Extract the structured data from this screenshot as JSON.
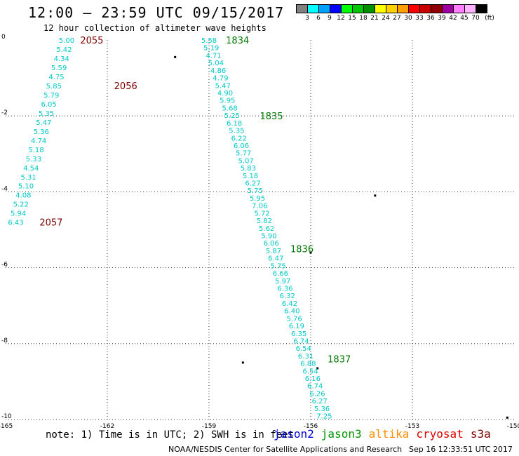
{
  "header": {
    "title": "12:00 – 23:59 UTC 09/15/2017",
    "subtitle": "12 hour collection of altimeter wave heights"
  },
  "legend": {
    "unit": "(ft)",
    "swatches": [
      {
        "color": "#808080",
        "label": "3"
      },
      {
        "color": "#00ffff",
        "label": "6"
      },
      {
        "color": "#00a0ff",
        "label": "9"
      },
      {
        "color": "#0000ff",
        "label": "12"
      },
      {
        "color": "#00ff00",
        "label": "15"
      },
      {
        "color": "#00c800",
        "label": "18"
      },
      {
        "color": "#009000",
        "label": "21"
      },
      {
        "color": "#ffff00",
        "label": "24"
      },
      {
        "color": "#ffd000",
        "label": "27"
      },
      {
        "color": "#ffa000",
        "label": "30"
      },
      {
        "color": "#ff0000",
        "label": "33"
      },
      {
        "color": "#c80000",
        "label": "36"
      },
      {
        "color": "#900000",
        "label": "39"
      },
      {
        "color": "#a000a0",
        "label": "42"
      },
      {
        "color": "#ff80ff",
        "label": "45"
      },
      {
        "color": "#ffb0ff",
        "label": "70"
      },
      {
        "color": "#000000",
        "label": ""
      }
    ]
  },
  "map": {
    "lon_range": [
      -165,
      -150
    ],
    "lat_range": [
      -10,
      0
    ],
    "lon_ticks": [
      "-165",
      "-162",
      "-159",
      "-156",
      "-153",
      "-150"
    ],
    "lat_ticks": [
      "0",
      "-2",
      "-4",
      "-6",
      "-8",
      "-10"
    ],
    "colors": {
      "wave_text": "#00c8c8",
      "pass_a": "#800000",
      "pass_b": "#007800",
      "grid": "#000000"
    },
    "tracks": [
      {
        "name": "track-west",
        "start": [
          -163.2,
          0.0
        ],
        "end": [
          -164.7,
          -4.8
        ],
        "values": [
          "5.00",
          "5.42",
          "4.34",
          "5.59",
          "4.75",
          "5.85",
          "5.79",
          "6.05",
          "5.35",
          "5.47",
          "5.36",
          "4.74",
          "5.18",
          "5.33",
          "4.54",
          "5.31",
          "5.10",
          "4.08",
          "5.22",
          "5.94",
          "6.43"
        ]
      },
      {
        "name": "track-east",
        "start": [
          -159.0,
          0.0
        ],
        "end": [
          -155.6,
          -9.9
        ],
        "values": [
          "5.58",
          "5.19",
          "4.71",
          "5.04",
          "4.86",
          "4.79",
          "5.47",
          "4.90",
          "5.95",
          "5.68",
          "5.25",
          "6.18",
          "5.35",
          "6.22",
          "6.06",
          "5.77",
          "5.07",
          "5.83",
          "5.18",
          "6.27",
          "5.75",
          "5.95",
          "7.06",
          "5.72",
          "5.82",
          "5.62",
          "5.90",
          "6.06",
          "5.87",
          "6.47",
          "5.75",
          "6.66",
          "5.97",
          "6.36",
          "6.32",
          "6.42",
          "6.40",
          "5.76",
          "6.19",
          "6.35",
          "6.74",
          "6.54",
          "6.31",
          "6.88",
          "6.54",
          "6.16",
          "6.74",
          "6.26",
          "6.27",
          "5.36",
          "7.25"
        ]
      }
    ],
    "time_labels": [
      {
        "text": "2055",
        "lon": -162.8,
        "lat": 0.0,
        "pass": "a"
      },
      {
        "text": "2056",
        "lon": -161.8,
        "lat": -1.2,
        "pass": "a"
      },
      {
        "text": "2057",
        "lon": -164.0,
        "lat": -4.8,
        "pass": "a"
      },
      {
        "text": "1834",
        "lon": -158.5,
        "lat": 0.0,
        "pass": "b"
      },
      {
        "text": "1835",
        "lon": -157.5,
        "lat": -2.0,
        "pass": "b"
      },
      {
        "text": "1836",
        "lon": -156.6,
        "lat": -5.5,
        "pass": "b"
      },
      {
        "text": "1837",
        "lon": -155.5,
        "lat": -8.4,
        "pass": "b"
      }
    ],
    "islands": [
      {
        "lon": -160.0,
        "lat": -0.45
      },
      {
        "lon": -154.1,
        "lat": -4.1
      },
      {
        "lon": -156.0,
        "lat": -5.6
      },
      {
        "lon": -155.8,
        "lat": -8.65
      },
      {
        "lon": -158.0,
        "lat": -8.5
      },
      {
        "lon": -150.2,
        "lat": -9.95
      }
    ]
  },
  "footer": {
    "note": "note: 1) Time is in UTC; 2) SWH is in feet",
    "satellites": [
      {
        "name": "jason2",
        "color": "#0000dc"
      },
      {
        "name": "jason3",
        "color": "#009600"
      },
      {
        "name": "altika",
        "color": "#ff8c00"
      },
      {
        "name": "cryosat",
        "color": "#dc0000"
      },
      {
        "name": "s3a",
        "color": "#800000"
      }
    ],
    "credit": "NOAA/NESDIS Center for Satellite Applications and Research",
    "timestamp": "Sep 16 12:33:51 UTC 2017"
  }
}
